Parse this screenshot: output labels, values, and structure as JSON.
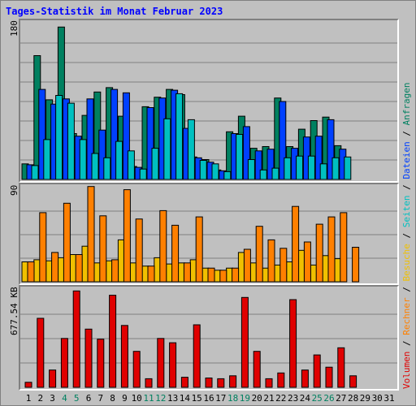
{
  "title": "Tages-Statistik im Monat Februar 2023",
  "legend": [
    {
      "text": "Volumen",
      "color": "#e00000"
    },
    {
      "text": " / ",
      "color": "#000000"
    },
    {
      "text": "Rechner",
      "color": "#ff8000"
    },
    {
      "text": " / ",
      "color": "#000000"
    },
    {
      "text": "Besuche",
      "color": "#f0c000"
    },
    {
      "text": " / ",
      "color": "#000000"
    },
    {
      "text": "Seiten",
      "color": "#00c0c0"
    },
    {
      "text": " / ",
      "color": "#000000"
    },
    {
      "text": "Dateien",
      "color": "#0040ff"
    },
    {
      "text": " / ",
      "color": "#000000"
    },
    {
      "text": "Anfragen",
      "color": "#008060"
    }
  ],
  "weekend_color": "#008060",
  "chart_data": [
    {
      "type": "bar",
      "ymax_label": "180",
      "ylim": [
        0,
        180
      ],
      "x": [
        "1",
        "2",
        "3",
        "4",
        "5",
        "6",
        "7",
        "8",
        "9",
        "10",
        "11",
        "12",
        "13",
        "14",
        "15",
        "16",
        "17",
        "18",
        "19",
        "20",
        "21",
        "22",
        "23",
        "24",
        "25",
        "26",
        "27",
        "28",
        "29",
        "30",
        "31"
      ],
      "weekend_days": [
        4,
        5,
        11,
        12,
        18,
        19,
        25,
        26
      ],
      "series": [
        {
          "color": "#008060",
          "values": [
            18,
            143,
            92,
            176,
            53,
            74,
            101,
            106,
            73,
            15,
            84,
            95,
            104,
            98,
            26,
            23,
            11,
            55,
            73,
            36,
            38,
            94,
            38,
            58,
            68,
            72,
            39,
            0,
            0,
            0,
            0
          ]
        },
        {
          "color": "#0040ff",
          "values": [
            17,
            104,
            87,
            93,
            50,
            93,
            57,
            104,
            100,
            14,
            83,
            94,
            103,
            59,
            25,
            20,
            10,
            53,
            61,
            33,
            35,
            90,
            36,
            49,
            50,
            69,
            35,
            0,
            0,
            0,
            0
          ]
        },
        {
          "color": "#00c0c0",
          "values": [
            16,
            46,
            97,
            88,
            46,
            30,
            25,
            44,
            33,
            12,
            36,
            70,
            99,
            69,
            22,
            18,
            9,
            52,
            23,
            11,
            13,
            25,
            27,
            27,
            18,
            25,
            26,
            0,
            0,
            0,
            0
          ]
        }
      ]
    },
    {
      "type": "bar",
      "ymax_label": "90",
      "ylim": [
        0,
        90
      ],
      "x": [
        "1",
        "2",
        "3",
        "4",
        "5",
        "6",
        "7",
        "8",
        "9",
        "10",
        "11",
        "12",
        "13",
        "14",
        "15",
        "16",
        "17",
        "18",
        "19",
        "20",
        "21",
        "22",
        "23",
        "24",
        "25",
        "26",
        "27",
        "28",
        "29",
        "30",
        "31"
      ],
      "series": [
        {
          "color": "#f0c000",
          "values": [
            19,
            21,
            20,
            23,
            26,
            34,
            18,
            20,
            40,
            18,
            15,
            23,
            17,
            18,
            21,
            13,
            11,
            13,
            28,
            18,
            13,
            16,
            19,
            30,
            16,
            25,
            22,
            0,
            0,
            0,
            0
          ]
        },
        {
          "color": "#ff8000",
          "values": [
            19,
            66,
            28,
            75,
            26,
            91,
            63,
            21,
            88,
            60,
            15,
            68,
            54,
            18,
            62,
            13,
            11,
            13,
            31,
            53,
            40,
            32,
            72,
            38,
            55,
            62,
            66,
            33,
            0,
            0,
            0
          ]
        }
      ]
    },
    {
      "type": "bar",
      "ymax_label": "677.54 KB",
      "ylim": [
        0,
        677.54
      ],
      "x": [
        "1",
        "2",
        "3",
        "4",
        "5",
        "6",
        "7",
        "8",
        "9",
        "10",
        "11",
        "12",
        "13",
        "14",
        "15",
        "16",
        "17",
        "18",
        "19",
        "20",
        "21",
        "22",
        "23",
        "24",
        "25",
        "26",
        "27",
        "28",
        "29",
        "30",
        "31"
      ],
      "series": [
        {
          "color": "#e00000",
          "values": [
            35,
            480,
            120,
            340,
            670,
            405,
            335,
            640,
            430,
            250,
            60,
            340,
            310,
            70,
            435,
            65,
            60,
            80,
            625,
            250,
            60,
            100,
            610,
            120,
            225,
            140,
            275,
            80,
            0,
            0,
            0
          ]
        }
      ]
    }
  ]
}
